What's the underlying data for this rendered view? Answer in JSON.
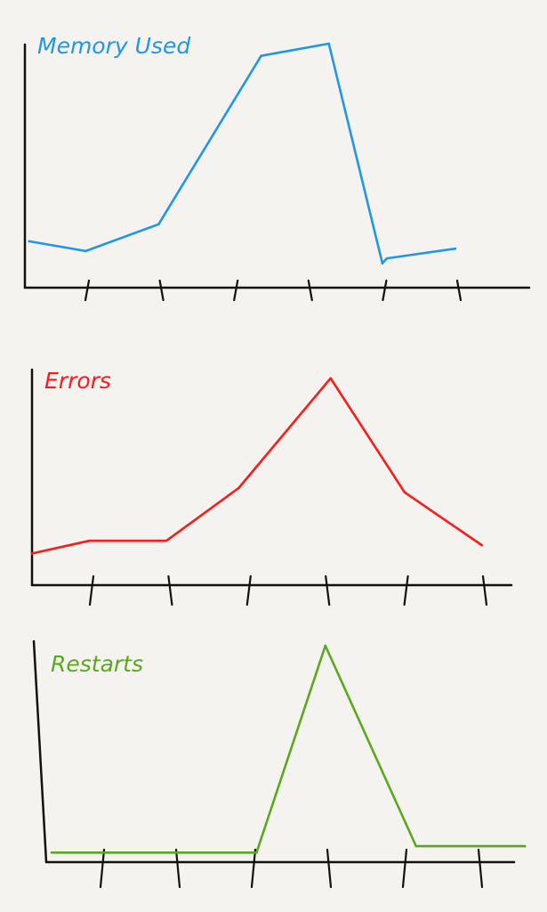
{
  "chart_data": [
    {
      "type": "line",
      "title": "Memory Used",
      "color": "#2196e8",
      "x": [
        0.22,
        0.98,
        1.96,
        3.34,
        4.25,
        4.97,
        5.03,
        5.95
      ],
      "values": [
        19,
        15,
        26,
        95,
        100,
        10,
        12,
        16
      ],
      "x_ticks": [
        1,
        2,
        3,
        4,
        5,
        6
      ],
      "xlim": [
        0,
        6.8
      ],
      "ylim": [
        0,
        100
      ],
      "tick_labels": false,
      "grid": false
    },
    {
      "type": "line",
      "title": "Errors",
      "color": "#ff1a1a",
      "x": [
        0.24,
        0.97,
        1.95,
        2.87,
        4.04,
        4.98,
        5.96
      ],
      "values": [
        15,
        21,
        21,
        46,
        98,
        44,
        19
      ],
      "x_ticks": [
        1,
        2,
        3,
        4,
        5,
        6
      ],
      "xlim": [
        0,
        6.3
      ],
      "ylim": [
        0,
        100
      ],
      "tick_labels": false,
      "grid": false
    },
    {
      "type": "line",
      "title": "Restarts",
      "color": "#5aa820",
      "x": [
        0.33,
        3.04,
        3.95,
        5.15,
        6.59
      ],
      "values": [
        2,
        2,
        100,
        5,
        5
      ],
      "x_ticks": [
        1,
        2,
        3,
        4,
        5,
        6
      ],
      "xlim": [
        0,
        6.5
      ],
      "ylim": [
        0,
        100
      ],
      "tick_labels": false,
      "grid": false
    }
  ]
}
